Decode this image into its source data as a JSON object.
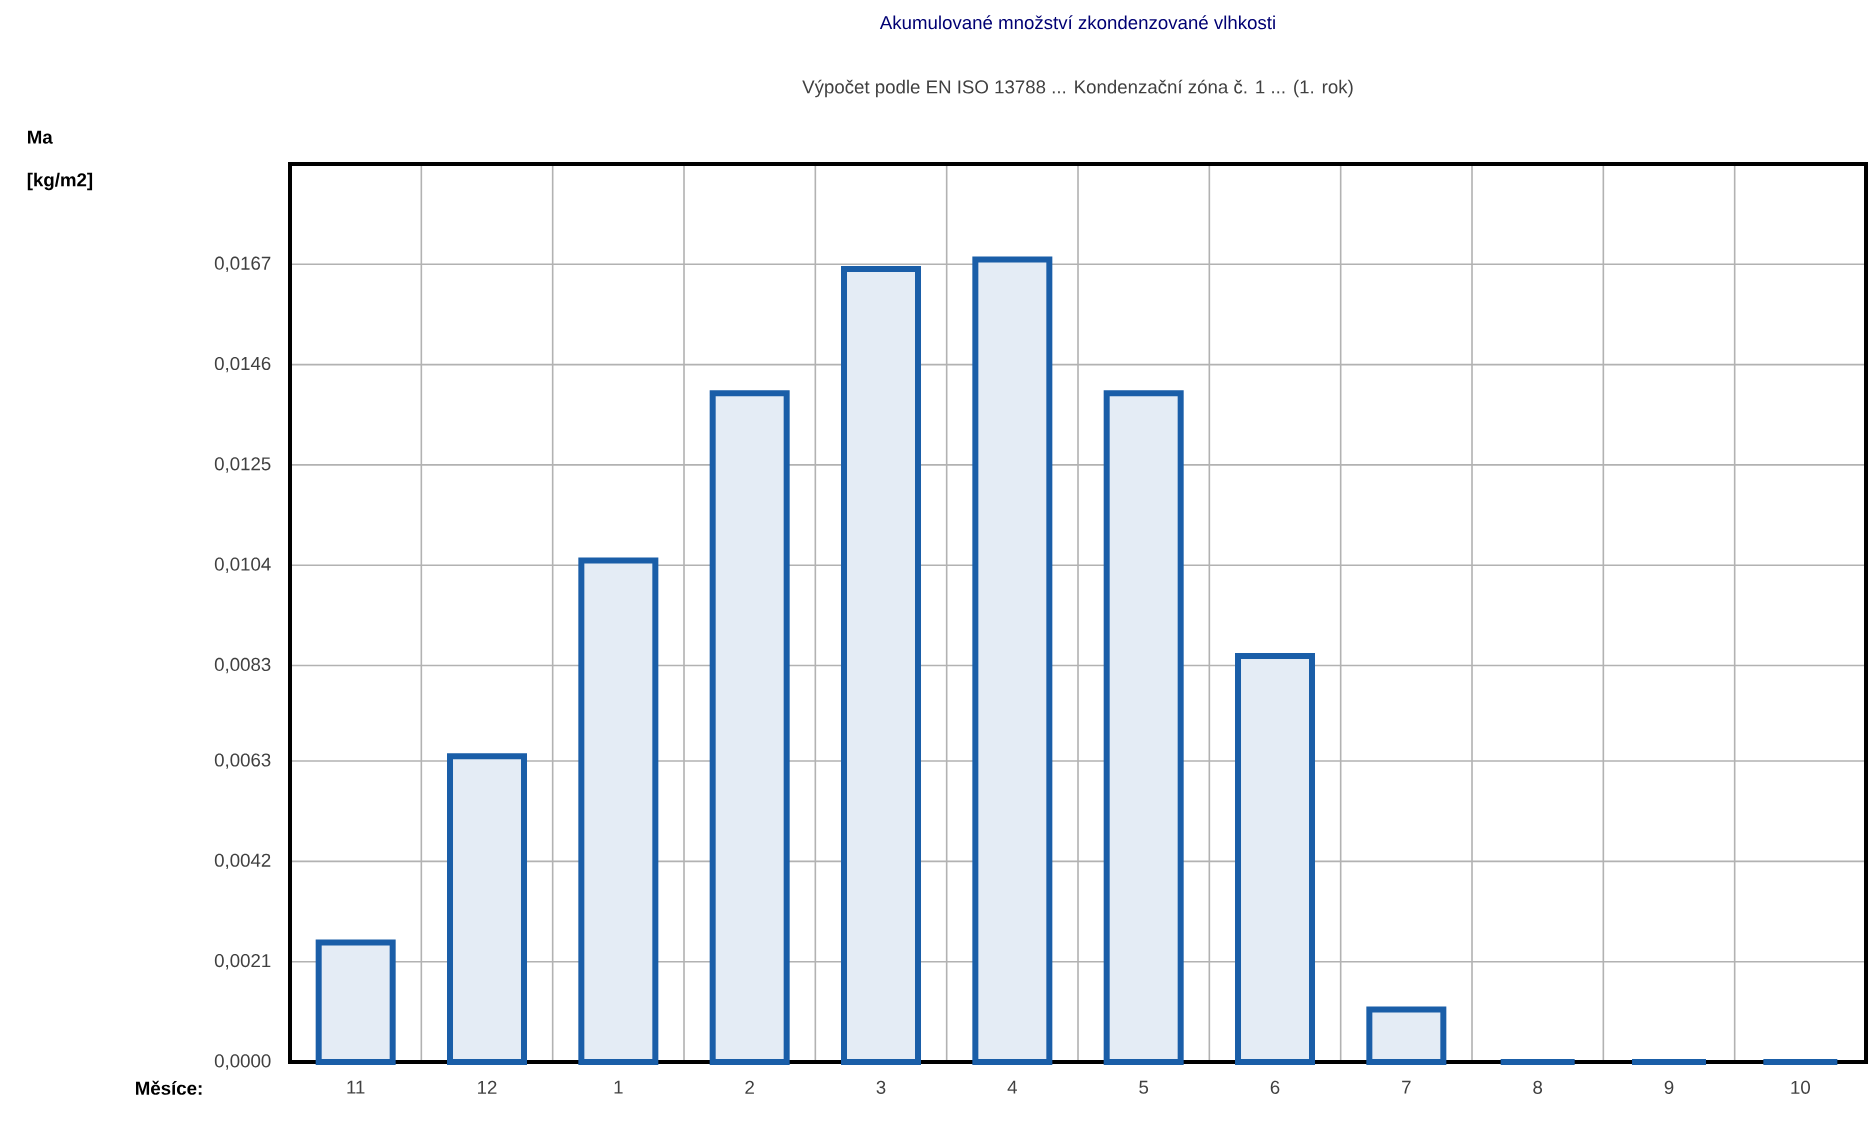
{
  "chart_data": {
    "type": "bar",
    "title": "Akumulované množství zkondenzované vlhkosti",
    "subtitle": "Výpočet podle EN ISO 13788 ... Kondenzační zóna č. 1 ... (1. rok)",
    "ylabel": "Ma [kg/m2]",
    "xlabel": "Měsíce:",
    "categories": [
      "11",
      "12",
      "1",
      "2",
      "3",
      "4",
      "5",
      "6",
      "7",
      "8",
      "9",
      "10"
    ],
    "values": [
      0.0025,
      0.0064,
      0.0105,
      0.014,
      0.0166,
      0.0168,
      0.014,
      0.0085,
      0.0011,
      0,
      0,
      0
    ],
    "color": "#1a5ea8",
    "ylim": [
      0,
      0.0188
    ],
    "yticks": [
      {
        "value": 0,
        "label": "0,0000"
      },
      {
        "value": 0.0021,
        "label": "0,0021"
      },
      {
        "value": 0.0042,
        "label": "0,0042"
      },
      {
        "value": 0.0063,
        "label": "0,0063"
      },
      {
        "value": 0.0083,
        "label": "0,0083"
      },
      {
        "value": 0.0104,
        "label": "0,0104"
      },
      {
        "value": 0.0125,
        "label": "0,0125"
      },
      {
        "value": 0.0146,
        "label": "0,0146"
      },
      {
        "value": 0.0167,
        "label": "0,0167"
      }
    ],
    "grid": true
  }
}
